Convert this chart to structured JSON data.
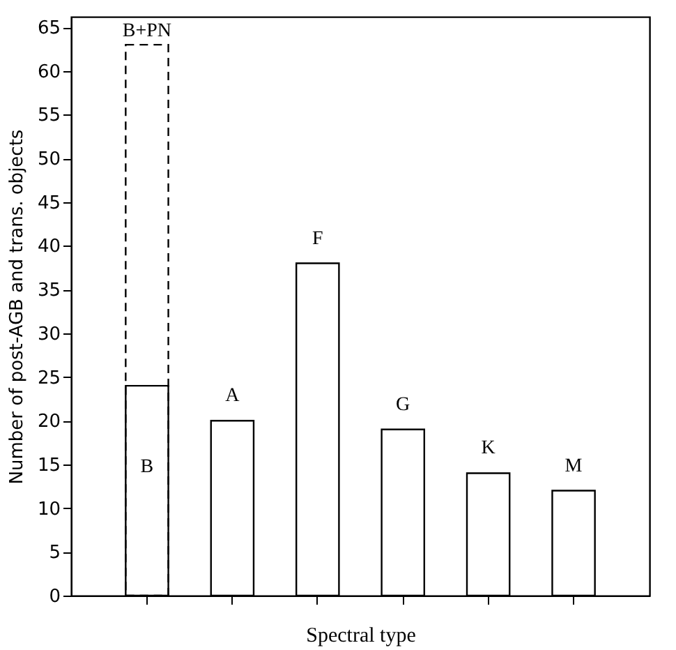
{
  "chart_data": {
    "type": "bar",
    "xlabel": "Spectral type",
    "ylabel": "Number of post-AGB and trans. objects",
    "categories": [
      "B",
      "A",
      "F",
      "G",
      "K",
      "M"
    ],
    "series": [
      {
        "name": "B+PN",
        "color": "#000000",
        "line_style": "dashed",
        "values": [
          63,
          null,
          null,
          null,
          null,
          null
        ]
      },
      {
        "color": "#000000",
        "line_style": "solid",
        "values": [
          24,
          20,
          38,
          19,
          14,
          12
        ]
      }
    ],
    "ylim": [
      0,
      66.2
    ],
    "yticks": [
      0,
      5,
      10,
      15,
      20,
      25,
      30,
      35,
      40,
      45,
      50,
      55,
      60,
      65
    ],
    "grid": false
  }
}
